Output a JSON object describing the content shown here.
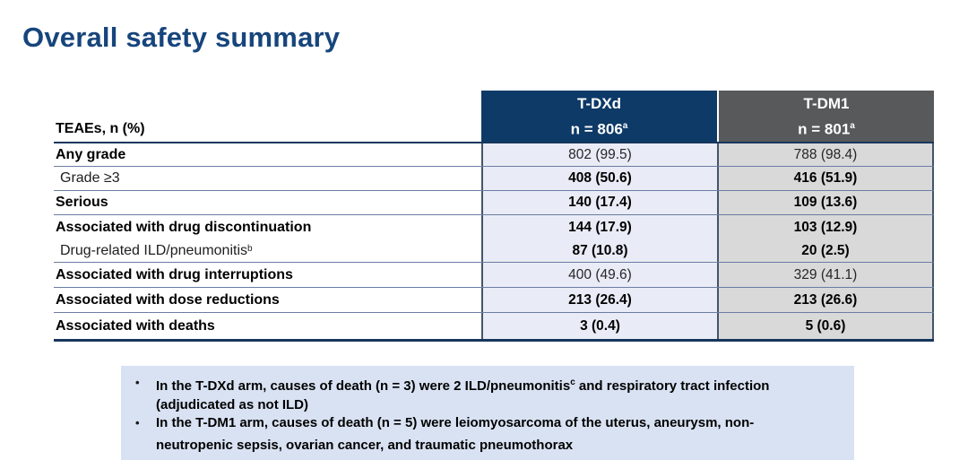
{
  "slide": {
    "title": "Overall safety summary"
  },
  "table": {
    "corner_label": "TEAEs, n (%)",
    "columns": [
      {
        "name": "T-DXd",
        "n": "n = 806",
        "sup": "a"
      },
      {
        "name": "T-DM1",
        "n": "n = 801",
        "sup": "a"
      }
    ],
    "rows": [
      {
        "label": "Any grade",
        "sup": "",
        "values": [
          "802 (99.5)",
          "788 (98.4)"
        ]
      },
      {
        "label": "Grade ≥3",
        "sup": "",
        "values": [
          "408 (50.6)",
          "416 (51.9)"
        ]
      },
      {
        "label": "Serious",
        "sup": "",
        "values": [
          "140 (17.4)",
          "109 (13.6)"
        ]
      },
      {
        "label": "Associated with drug discontinuation",
        "sup": "",
        "values": [
          "144 (17.9)",
          "103 (12.9)"
        ]
      },
      {
        "label": "Drug-related ILD/pneumonitis",
        "sup": "b",
        "values": [
          "87 (10.8)",
          "20 (2.5)"
        ]
      },
      {
        "label": "Associated with drug interruptions",
        "sup": "",
        "values": [
          "400 (49.6)",
          "329 (41.1)"
        ]
      },
      {
        "label": "Associated with dose reductions",
        "sup": "",
        "values": [
          "213 (26.4)",
          "213 (26.6)"
        ]
      },
      {
        "label": "Associated with deaths",
        "sup": "",
        "values": [
          "3 (0.4)",
          "5 (0.6)"
        ]
      }
    ]
  },
  "notes": {
    "bullet_char": "•",
    "bullets": [
      {
        "pre": "In the T-DXd arm, causes of death (n = 3) were 2 ILD/pneumonitis",
        "sup": "c",
        "post": " and respiratory tract infection (adjudicated as not ILD)"
      },
      {
        "pre": "In the T-DM1 arm, causes of death (n = 5) were leiomyosarcoma of the uterus, aneurysm, non-neutropenic sepsis, ovarian cancer, and traumatic pneumothorax",
        "sup": "",
        "post": ""
      }
    ]
  },
  "colors": {
    "title_text": "#17457c",
    "tdxd_header_bg": "#0d3a67",
    "tdm1_header_bg": "#58595b",
    "tdxd_cell_bg": "#e9ecf6",
    "tdm1_cell_bg": "#d9d9d9",
    "notes_bg": "#d9e2f3",
    "row_divider": "#6b7ca3",
    "strong_rule": "#17365d"
  }
}
